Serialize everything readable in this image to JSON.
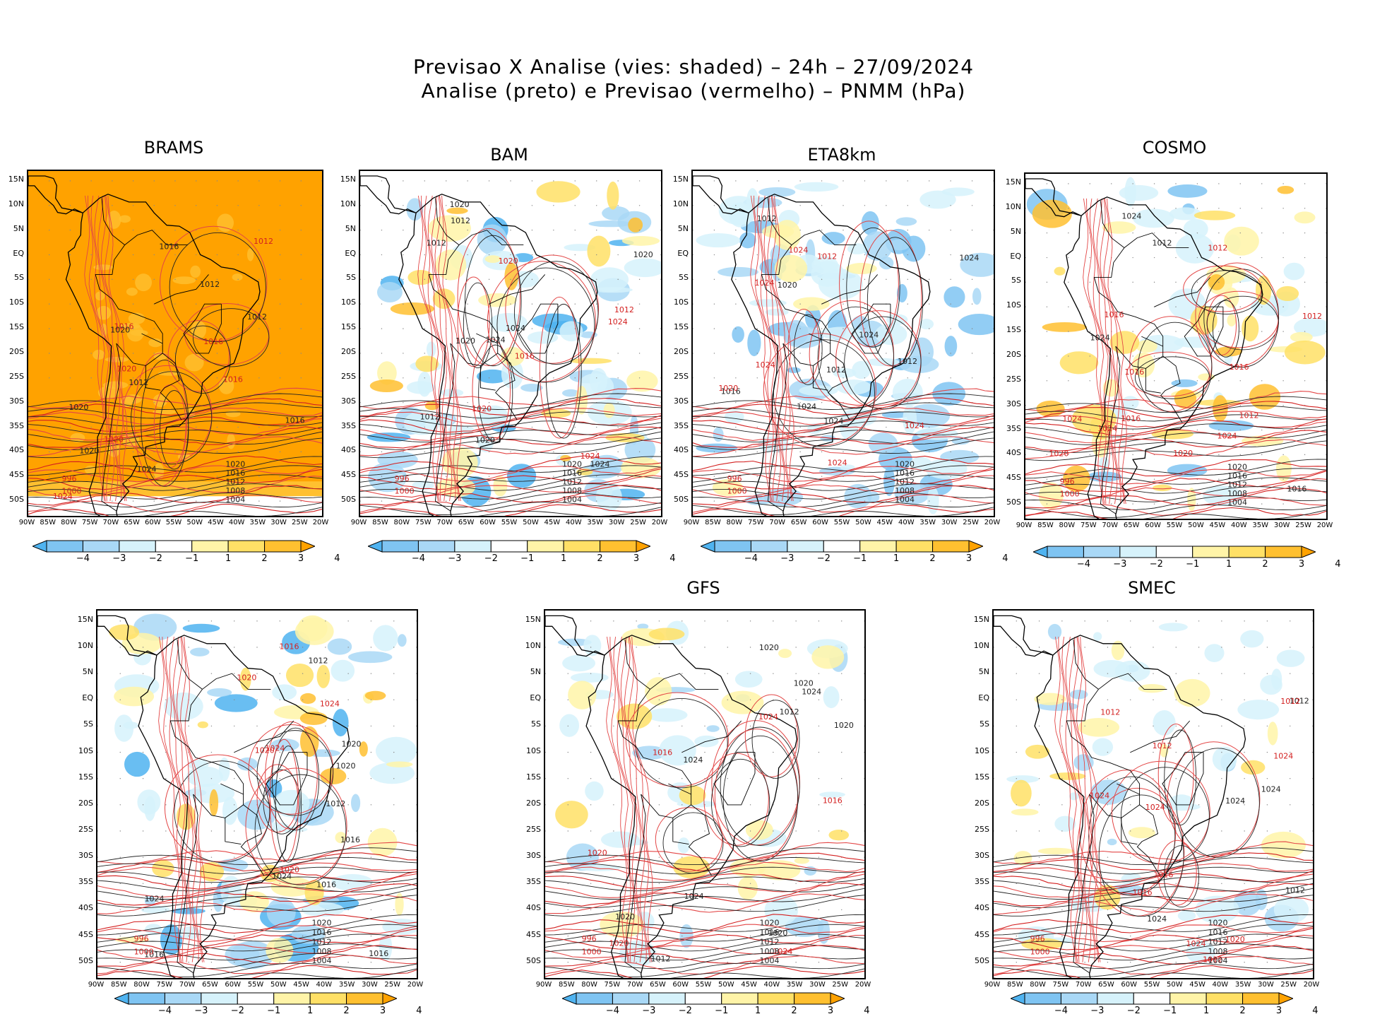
{
  "title": {
    "line1": "Previsao X Analise (vies: shaded) – 24h – 27/09/2024",
    "line2": "Analise (preto) e Previsao (vermelho) – PNMM (hPa)"
  },
  "axes": {
    "lat_ticks": [
      "15N",
      "10N",
      "5N",
      "EQ",
      "5S",
      "10S",
      "15S",
      "20S",
      "25S",
      "30S",
      "35S",
      "40S",
      "45S",
      "50S"
    ],
    "lon_ticks": [
      "90W",
      "85W",
      "80W",
      "75W",
      "70W",
      "65W",
      "60W",
      "55W",
      "50W",
      "45W",
      "40W",
      "35W",
      "30W",
      "25W",
      "20W"
    ]
  },
  "colorbar": {
    "labels": [
      "−4",
      "−3",
      "−2",
      "−1",
      "1",
      "2",
      "3",
      "4"
    ],
    "colors": [
      "#4fb3f0",
      "#7fc4f2",
      "#a9d8f6",
      "#d6f2fb",
      "#ffffff",
      "#fff4a8",
      "#ffe066",
      "#ffc030",
      "#ffa200"
    ]
  },
  "panels": [
    {
      "id": "brams",
      "title": "BRAMS",
      "bias": "warm-strong"
    },
    {
      "id": "bam",
      "title": "BAM",
      "bias": "mixed"
    },
    {
      "id": "eta8km",
      "title": "ETA8km",
      "bias": "cool"
    },
    {
      "id": "cosmo",
      "title": "COSMO",
      "bias": "mixed-warm"
    },
    {
      "id": "unnamed",
      "title": "",
      "bias": "mixed"
    },
    {
      "id": "gfs",
      "title": "GFS",
      "bias": "light"
    },
    {
      "id": "smec",
      "title": "SMEC",
      "bias": "light"
    }
  ],
  "isobar_labels": [
    "1012",
    "1016",
    "1020",
    "1024",
    "1008",
    "1004",
    "1000",
    "996"
  ]
}
